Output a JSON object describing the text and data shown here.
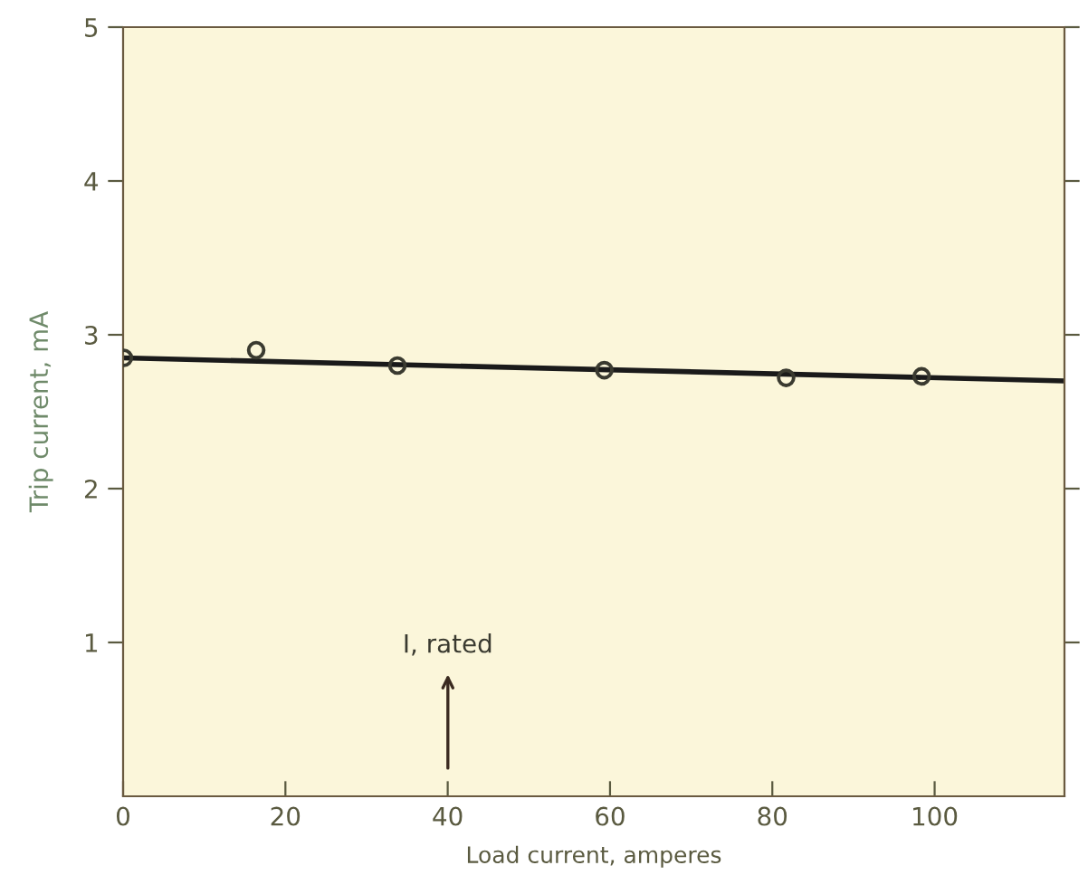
{
  "chart_data": {
    "type": "scatter",
    "xlabel": "Load current, amperes",
    "ylabel": "Trip current, mA",
    "x": [
      0.1,
      16.4,
      33.8,
      59.3,
      81.7,
      98.4
    ],
    "series": [
      {
        "color": "#3a3a30",
        "marker": "circle",
        "values": [
          2.85,
          2.9,
          2.8,
          2.77,
          2.72,
          2.73
        ]
      },
      {
        "type": "line",
        "color": "#1a1a1a",
        "marker": "none",
        "line_style": "solid",
        "x": [
          0,
          116
        ],
        "values": [
          2.85,
          2.7
        ]
      }
    ],
    "annotations": [
      "I, rated"
    ],
    "xlim": [
      0,
      116
    ],
    "ylim": [
      0,
      5
    ],
    "xticks": [
      0,
      20,
      40,
      60,
      80,
      100
    ],
    "yticks": [
      1,
      2,
      3,
      4,
      5
    ],
    "grid": false,
    "legend": false
  }
}
